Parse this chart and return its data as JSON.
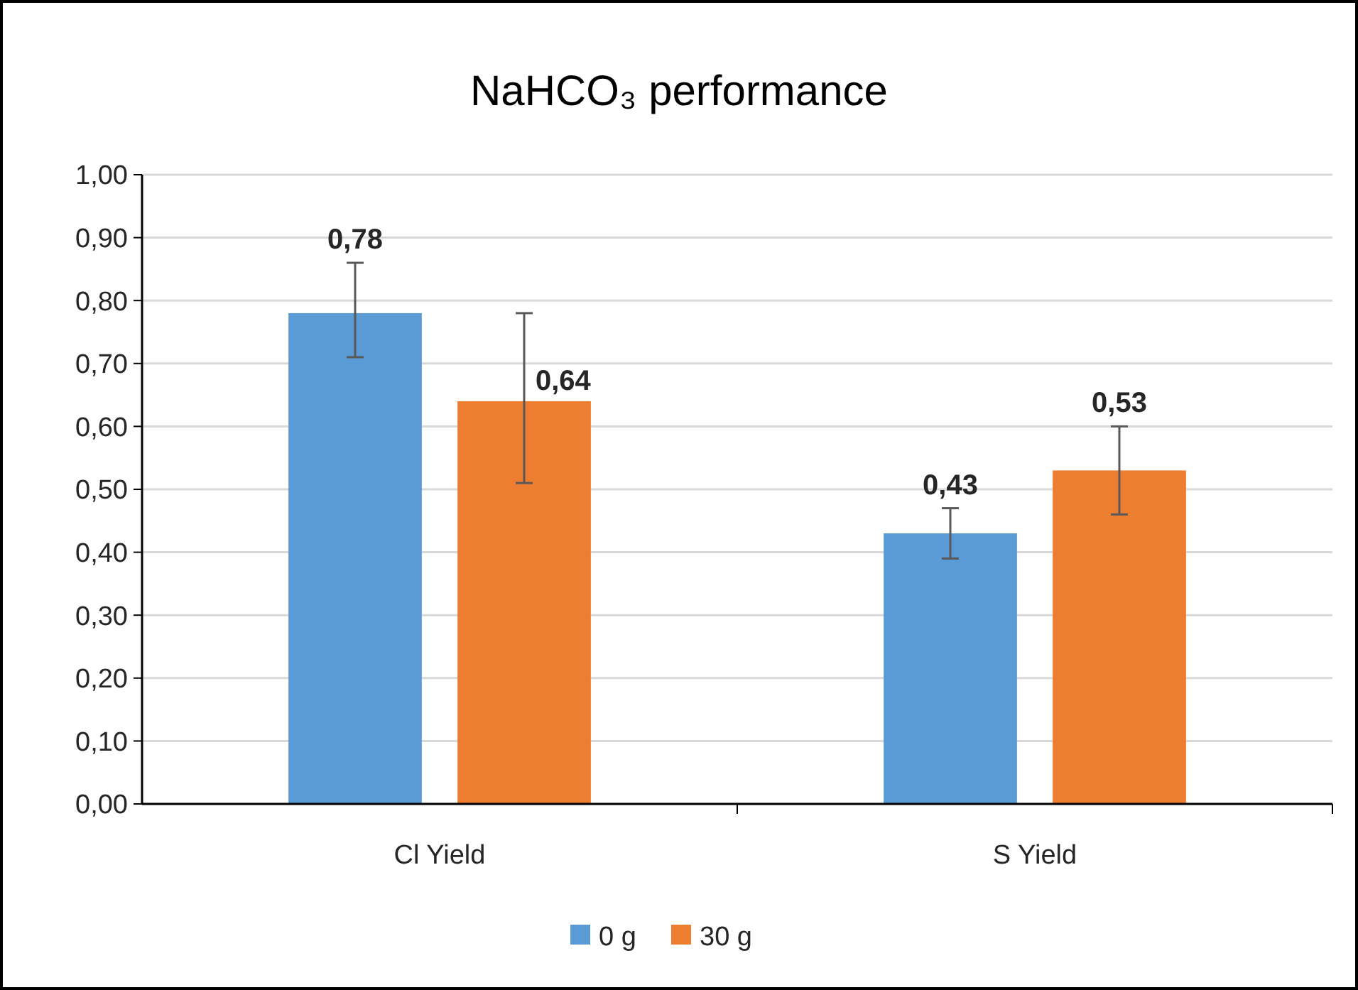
{
  "chart_data": {
    "type": "bar",
    "title": "NaHCO₃ performance",
    "categories": [
      "Cl Yield",
      "S Yield"
    ],
    "series": [
      {
        "name": "0 g",
        "color": "#5b9bd5",
        "values": [
          0.78,
          0.43
        ],
        "value_labels": [
          "0,78",
          "0,43"
        ],
        "errors": [
          [
            0.71,
            0.86
          ],
          [
            0.39,
            0.47
          ]
        ]
      },
      {
        "name": "30 g",
        "color": "#ed7d31",
        "values": [
          0.64,
          0.53
        ],
        "value_labels": [
          "0,64",
          "0,53"
        ],
        "errors": [
          [
            0.51,
            0.78
          ],
          [
            0.46,
            0.6
          ]
        ]
      }
    ],
    "ylim": [
      0,
      1
    ],
    "yticks": [
      {
        "value": 0,
        "label": "0,00"
      },
      {
        "value": 0.1,
        "label": "0,10"
      },
      {
        "value": 0.2,
        "label": "0,20"
      },
      {
        "value": 0.3,
        "label": "0,30"
      },
      {
        "value": 0.4,
        "label": "0,40"
      },
      {
        "value": 0.5,
        "label": "0,50"
      },
      {
        "value": 0.6,
        "label": "0,60"
      },
      {
        "value": 0.7,
        "label": "0,70"
      },
      {
        "value": 0.8,
        "label": "0,80"
      },
      {
        "value": 0.9,
        "label": "0,90"
      },
      {
        "value": 1,
        "label": "1,00"
      }
    ],
    "grid": "y",
    "legend": "bottom"
  }
}
